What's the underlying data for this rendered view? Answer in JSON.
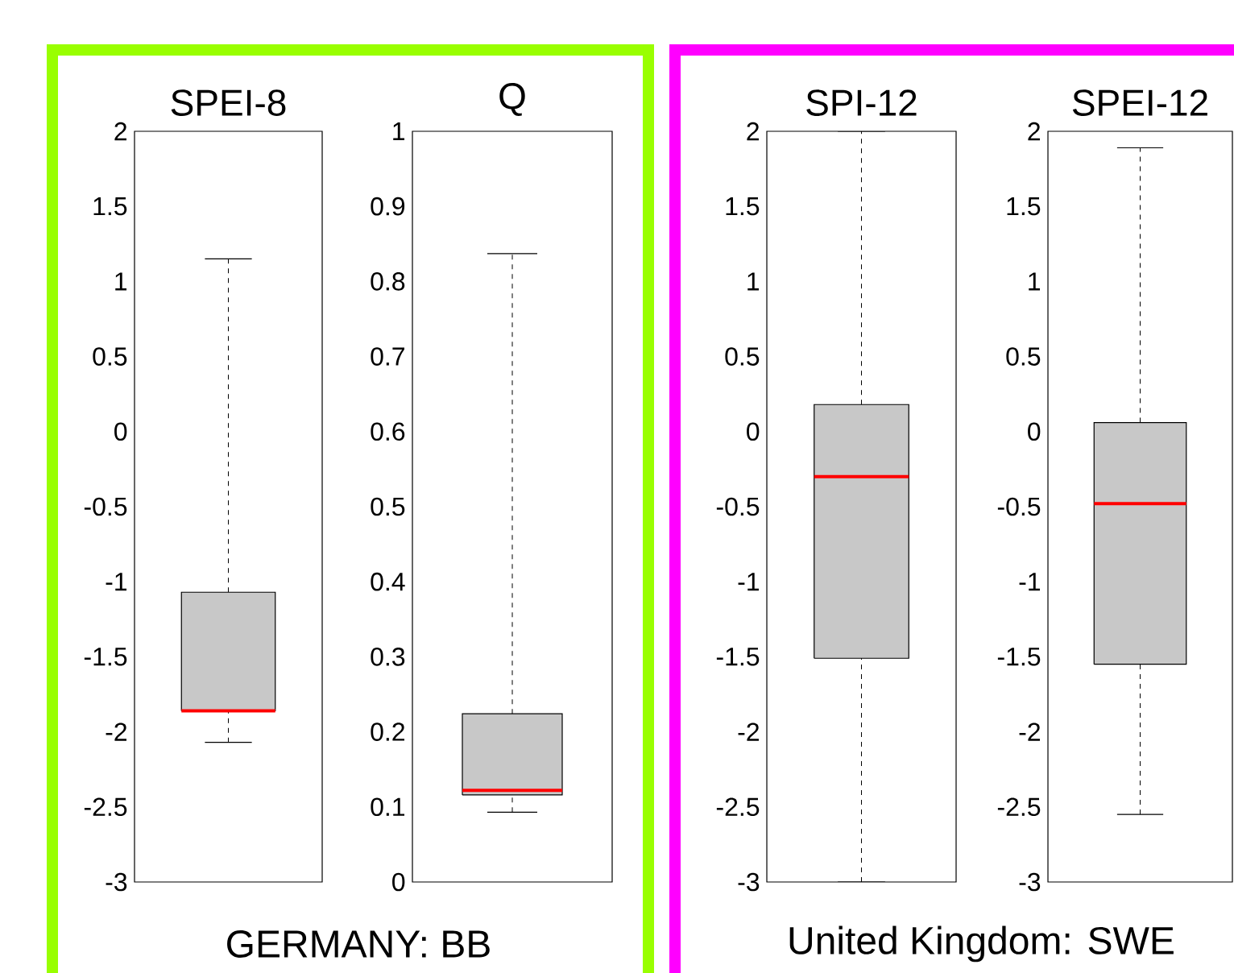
{
  "chart_data": [
    {
      "type": "box",
      "categories": [
        "SPEI-8"
      ],
      "ylim": [
        -3,
        2
      ],
      "yticks": [
        -3,
        -2.5,
        -2,
        -1.5,
        -1,
        -0.5,
        0,
        0.5,
        1,
        1.5,
        2
      ],
      "annotations": [
        "GERMANY: BB"
      ],
      "series": [
        {
          "color": "#c8c8c8",
          "boxes": [
            {
              "low": -2.07,
              "q1": -1.86,
              "median": -1.86,
              "q3": -1.07,
              "high": 1.15
            }
          ]
        }
      ]
    },
    {
      "type": "box",
      "categories": [
        "Q"
      ],
      "ylim": [
        0,
        1
      ],
      "yticks": [
        0,
        0.1,
        0.2,
        0.3,
        0.4,
        0.5,
        0.6,
        0.7,
        0.8,
        0.9,
        1
      ],
      "series": [
        {
          "color": "#c8c8c8",
          "boxes": [
            {
              "low": 0.093,
              "q1": 0.116,
              "median": 0.122,
              "q3": 0.224,
              "high": 0.837
            }
          ]
        }
      ]
    },
    {
      "type": "box",
      "categories": [
        "SPI-12"
      ],
      "ylim": [
        -3,
        2
      ],
      "yticks": [
        -3,
        -2.5,
        -2,
        -1.5,
        -1,
        -0.5,
        0,
        0.5,
        1,
        1.5,
        2
      ],
      "annotations": [
        "United Kingdom: SWE"
      ],
      "series": [
        {
          "color": "#c8c8c8",
          "boxes": [
            {
              "low": -3.0,
              "q1": -1.51,
              "median": -0.3,
              "q3": 0.18,
              "high": 2.0
            }
          ]
        }
      ]
    },
    {
      "type": "box",
      "categories": [
        "SPEI-12"
      ],
      "ylim": [
        -3,
        2
      ],
      "yticks": [
        -3,
        -2.5,
        -2,
        -1.5,
        -1,
        -0.5,
        0,
        0.5,
        1,
        1.5,
        2
      ],
      "series": [
        {
          "color": "#c8c8c8",
          "boxes": [
            {
              "low": -2.55,
              "q1": -1.55,
              "median": -0.48,
              "q3": 0.06,
              "high": 1.89
            }
          ]
        }
      ]
    }
  ]
}
